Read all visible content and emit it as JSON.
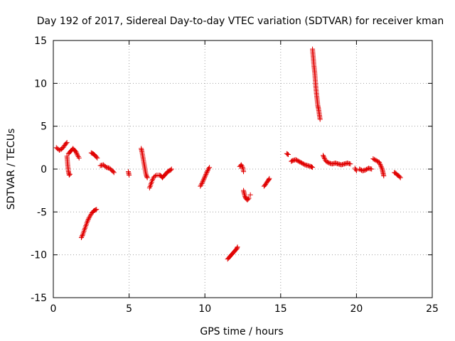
{
  "chart_data": {
    "type": "scatter",
    "title": "Day 192 of 2017, Sidereal Day-to-day VTEC variation (SDTVAR) for receiver kman",
    "xlabel": "GPS time / hours",
    "ylabel": "SDTVAR / TECUs",
    "xlim": [
      0,
      25
    ],
    "ylim": [
      -15,
      15
    ],
    "x_ticks": [
      "0",
      "5",
      "10",
      "15",
      "20",
      "25"
    ],
    "y_ticks": [
      "15",
      "10",
      "5",
      "0",
      "-5",
      "-10",
      "-15"
    ],
    "grid": true,
    "marker": "+",
    "color": "#e00000",
    "segments": [
      {
        "x": [
          0.2,
          0.4,
          0.6,
          0.8,
          0.9
        ],
        "y": [
          2.5,
          2.2,
          2.4,
          2.9,
          3.1
        ]
      },
      {
        "x": [
          0.9,
          0.95,
          1.0,
          1.05,
          1.1
        ],
        "y": [
          1.5,
          0.5,
          -0.3,
          -0.7,
          -0.6
        ]
      },
      {
        "x": [
          1.0,
          1.1,
          1.2,
          1.3,
          1.4,
          1.5,
          1.6,
          1.7
        ],
        "y": [
          1.8,
          2.0,
          2.2,
          2.4,
          2.2,
          2.0,
          1.6,
          1.3
        ]
      },
      {
        "x": [
          1.85,
          1.95,
          2.05,
          2.15,
          2.25,
          2.35,
          2.45,
          2.55,
          2.65,
          2.75,
          2.85
        ],
        "y": [
          -8.0,
          -7.6,
          -7.1,
          -6.6,
          -6.1,
          -5.7,
          -5.4,
          -5.1,
          -4.9,
          -4.8,
          -4.7
        ]
      },
      {
        "x": [
          2.5,
          2.6,
          2.7,
          2.8,
          2.9
        ],
        "y": [
          1.9,
          1.8,
          1.7,
          1.5,
          1.3
        ]
      },
      {
        "x": [
          3.1,
          3.3,
          3.5,
          3.7,
          3.9,
          4.0
        ],
        "y": [
          0.4,
          0.5,
          0.2,
          0.1,
          -0.2,
          -0.4
        ]
      },
      {
        "x": [
          4.95,
          5.0
        ],
        "y": [
          -0.3,
          -0.7
        ]
      },
      {
        "x": [
          5.8,
          5.85,
          5.9,
          5.95,
          6.0,
          6.05,
          6.1,
          6.15,
          6.2
        ],
        "y": [
          2.4,
          2.0,
          1.5,
          1.0,
          0.5,
          0.0,
          -0.5,
          -0.8,
          -1.0
        ]
      },
      {
        "x": [
          6.35,
          6.45,
          6.55,
          6.65,
          6.8,
          7.0,
          7.1,
          7.2
        ],
        "y": [
          -2.2,
          -1.7,
          -1.2,
          -0.9,
          -0.7,
          -0.7,
          -0.8,
          -1.0
        ]
      },
      {
        "x": [
          7.25,
          7.35,
          7.45,
          7.55,
          7.65,
          7.75,
          7.8
        ],
        "y": [
          -0.9,
          -0.7,
          -0.5,
          -0.3,
          -0.2,
          -0.1,
          0.0
        ]
      },
      {
        "x": [
          9.7,
          9.8,
          9.9,
          10.0,
          10.1,
          10.2,
          10.3
        ],
        "y": [
          -2.0,
          -1.7,
          -1.3,
          -0.9,
          -0.5,
          -0.1,
          0.2
        ]
      },
      {
        "x": [
          11.5,
          11.6,
          11.7,
          11.8,
          11.9,
          12.0,
          12.1,
          12.15
        ],
        "y": [
          -10.5,
          -10.3,
          -10.1,
          -9.9,
          -9.7,
          -9.5,
          -9.3,
          -9.1
        ]
      },
      {
        "x": [
          12.3,
          12.4,
          12.5,
          12.55
        ],
        "y": [
          0.3,
          0.5,
          0.2,
          -0.3
        ]
      },
      {
        "x": [
          12.55,
          12.6,
          12.65,
          12.7,
          12.8,
          12.9
        ],
        "y": [
          -2.5,
          -2.9,
          -3.2,
          -3.4,
          -3.6,
          -3.4
        ]
      },
      {
        "x": [
          13.0
        ],
        "y": [
          -3.0
        ]
      },
      {
        "x": [
          13.9,
          14.0,
          14.1,
          14.2,
          14.25
        ],
        "y": [
          -2.0,
          -1.8,
          -1.5,
          -1.3,
          -1.1
        ]
      },
      {
        "x": [
          15.4,
          15.5
        ],
        "y": [
          1.8,
          1.7
        ]
      },
      {
        "x": [
          15.7,
          15.8,
          16.0,
          16.2,
          16.4,
          16.6,
          16.8,
          17.0,
          17.1
        ],
        "y": [
          0.9,
          1.0,
          1.1,
          0.9,
          0.7,
          0.5,
          0.4,
          0.3,
          0.2
        ]
      },
      {
        "x": [
          17.1,
          17.15,
          17.2,
          17.25,
          17.3,
          17.35,
          17.4,
          17.45,
          17.5,
          17.55,
          17.6
        ],
        "y": [
          14.0,
          13.0,
          12.0,
          11.2,
          10.0,
          9.0,
          8.2,
          7.4,
          7.0,
          6.4,
          5.8
        ]
      },
      {
        "x": [
          17.8,
          17.9,
          18.0,
          18.2,
          18.4,
          18.6,
          18.8,
          19.0,
          19.2,
          19.4,
          19.6
        ],
        "y": [
          1.6,
          1.2,
          0.9,
          0.7,
          0.6,
          0.7,
          0.6,
          0.5,
          0.6,
          0.7,
          0.6
        ]
      },
      {
        "x": [
          19.9,
          20.0
        ],
        "y": [
          0.1,
          -0.2
        ]
      },
      {
        "x": [
          20.2,
          20.4,
          20.6,
          20.8,
          21.0
        ],
        "y": [
          0.0,
          -0.2,
          -0.1,
          0.1,
          0.0
        ]
      },
      {
        "x": [
          21.1,
          21.3,
          21.5,
          21.6,
          21.7,
          21.75,
          21.8
        ],
        "y": [
          1.2,
          1.0,
          0.8,
          0.4,
          0.0,
          -0.4,
          -0.8
        ]
      },
      {
        "x": [
          22.5,
          22.6,
          22.7,
          22.8,
          22.9
        ],
        "y": [
          -0.4,
          -0.5,
          -0.7,
          -0.8,
          -1.0
        ]
      }
    ]
  }
}
